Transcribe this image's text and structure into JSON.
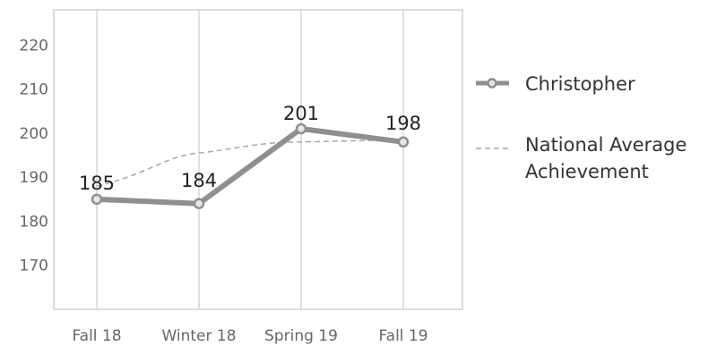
{
  "chart_data": {
    "type": "line",
    "title": "",
    "xlabel": "",
    "ylabel": "",
    "categories": [
      "Fall 18",
      "Winter 18",
      "Spring 19",
      "Fall 19"
    ],
    "ylim": [
      160,
      228
    ],
    "yticks": [
      170,
      180,
      190,
      200,
      210,
      220
    ],
    "grid": "vertical",
    "legend": "right",
    "series": [
      {
        "name": "Christopher",
        "values": [
          185,
          184,
          201,
          198
        ],
        "data_labels": [
          "185",
          "184",
          "201",
          "198"
        ],
        "style": "solid-markers",
        "color": "#8f8f8f"
      },
      {
        "name": "National Average Achievement",
        "values": [
          188,
          195.5,
          198,
          198.5
        ],
        "style": "dashed",
        "color": "#a8a8a8"
      }
    ]
  },
  "legend": {
    "christopher": "Christopher",
    "national_line1": "National Average",
    "national_line2": "Achievement"
  }
}
